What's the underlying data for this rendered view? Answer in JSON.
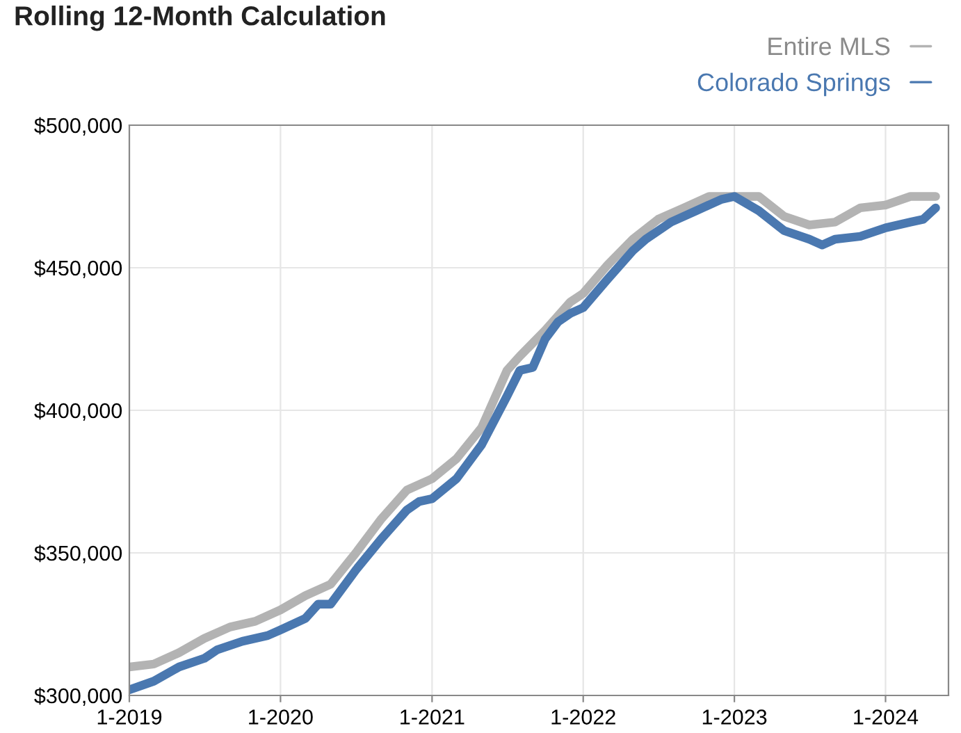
{
  "chart_data": {
    "type": "line",
    "title": "Rolling 12-Month Calculation",
    "legend": "top right",
    "grid": true,
    "line_style": "solid",
    "xlim": [
      "2019-01",
      "2024-06"
    ],
    "xticks": [
      {
        "value": "2019-01",
        "label": "1-2019"
      },
      {
        "value": "2020-01",
        "label": "1-2020"
      },
      {
        "value": "2021-01",
        "label": "1-2021"
      },
      {
        "value": "2022-01",
        "label": "1-2022"
      },
      {
        "value": "2023-01",
        "label": "1-2023"
      },
      {
        "value": "2024-01",
        "label": "1-2024"
      }
    ],
    "ylim": [
      300000,
      500000
    ],
    "yticks": [
      {
        "value": 300000,
        "label": "$300,000"
      },
      {
        "value": 350000,
        "label": "$350,000"
      },
      {
        "value": 400000,
        "label": "$400,000"
      },
      {
        "value": 450000,
        "label": "$450,000"
      },
      {
        "value": 500000,
        "label": "$500,000"
      }
    ],
    "series": [
      {
        "name": "Entire MLS",
        "color": "#b3b3b3",
        "x": [
          "2019-01",
          "2019-03",
          "2019-05",
          "2019-07",
          "2019-09",
          "2019-11",
          "2020-01",
          "2020-03",
          "2020-05",
          "2020-07",
          "2020-09",
          "2020-11",
          "2021-01",
          "2021-03",
          "2021-05",
          "2021-07",
          "2021-08",
          "2021-10",
          "2021-12",
          "2022-01",
          "2022-03",
          "2022-05",
          "2022-07",
          "2022-09",
          "2022-11",
          "2023-01",
          "2023-03",
          "2023-05",
          "2023-07",
          "2023-09",
          "2023-11",
          "2024-01",
          "2024-03",
          "2024-05"
        ],
        "values": [
          310000,
          311000,
          315000,
          320000,
          324000,
          326000,
          330000,
          335000,
          339000,
          350000,
          362000,
          372000,
          376000,
          383000,
          394000,
          414000,
          419000,
          428000,
          438000,
          441000,
          451000,
          460000,
          467000,
          471000,
          475000,
          475000,
          475000,
          468000,
          465000,
          466000,
          471000,
          472000,
          475000,
          475000
        ]
      },
      {
        "name": "Colorado Springs",
        "color": "#4a78b0",
        "x": [
          "2019-01",
          "2019-03",
          "2019-05",
          "2019-07",
          "2019-08",
          "2019-10",
          "2019-12",
          "2020-01",
          "2020-03",
          "2020-04",
          "2020-05",
          "2020-07",
          "2020-09",
          "2020-11",
          "2020-12",
          "2021-01",
          "2021-03",
          "2021-05",
          "2021-07",
          "2021-08",
          "2021-09",
          "2021-10",
          "2021-11",
          "2021-12",
          "2022-01",
          "2022-03",
          "2022-05",
          "2022-06",
          "2022-08",
          "2022-10",
          "2022-12",
          "2023-01",
          "2023-03",
          "2023-05",
          "2023-07",
          "2023-08",
          "2023-09",
          "2023-11",
          "2024-01",
          "2024-03",
          "2024-04",
          "2024-05"
        ],
        "values": [
          302000,
          305000,
          310000,
          313000,
          316000,
          319000,
          321000,
          323000,
          327000,
          332000,
          332000,
          344000,
          355000,
          365000,
          368000,
          369000,
          376000,
          388000,
          405000,
          414000,
          415000,
          425000,
          431000,
          434000,
          436000,
          446000,
          456000,
          460000,
          466000,
          470000,
          474000,
          475000,
          470000,
          463000,
          460000,
          458000,
          460000,
          461000,
          464000,
          466000,
          467000,
          471000
        ]
      }
    ]
  }
}
